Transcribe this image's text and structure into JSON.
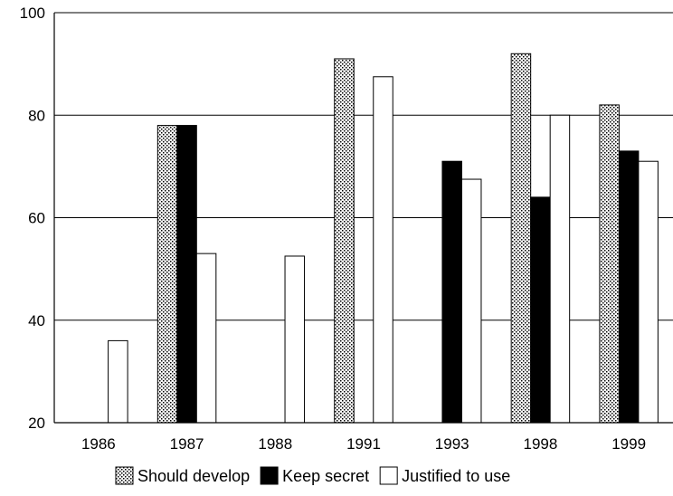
{
  "chart_data": {
    "type": "bar",
    "title": "",
    "xlabel": "",
    "ylabel": "",
    "ylim": [
      20,
      100
    ],
    "yticks": [
      "20",
      "40",
      "60",
      "80",
      "100"
    ],
    "categories": [
      "1986",
      "1987",
      "1988",
      "1991",
      "1993",
      "1998",
      "1999"
    ],
    "series": [
      {
        "name": "Should develop",
        "fill": "pattern-dots",
        "values": [
          null,
          78,
          null,
          91,
          null,
          92,
          82
        ]
      },
      {
        "name": "Keep secret",
        "fill": "#000000",
        "values": [
          null,
          78,
          null,
          null,
          71,
          64,
          73
        ]
      },
      {
        "name": "Justified to use",
        "fill": "#ffffff",
        "values": [
          36,
          53,
          52.5,
          87.5,
          67.5,
          80,
          71
        ]
      }
    ],
    "grid": true,
    "legend_position": "bottom"
  }
}
